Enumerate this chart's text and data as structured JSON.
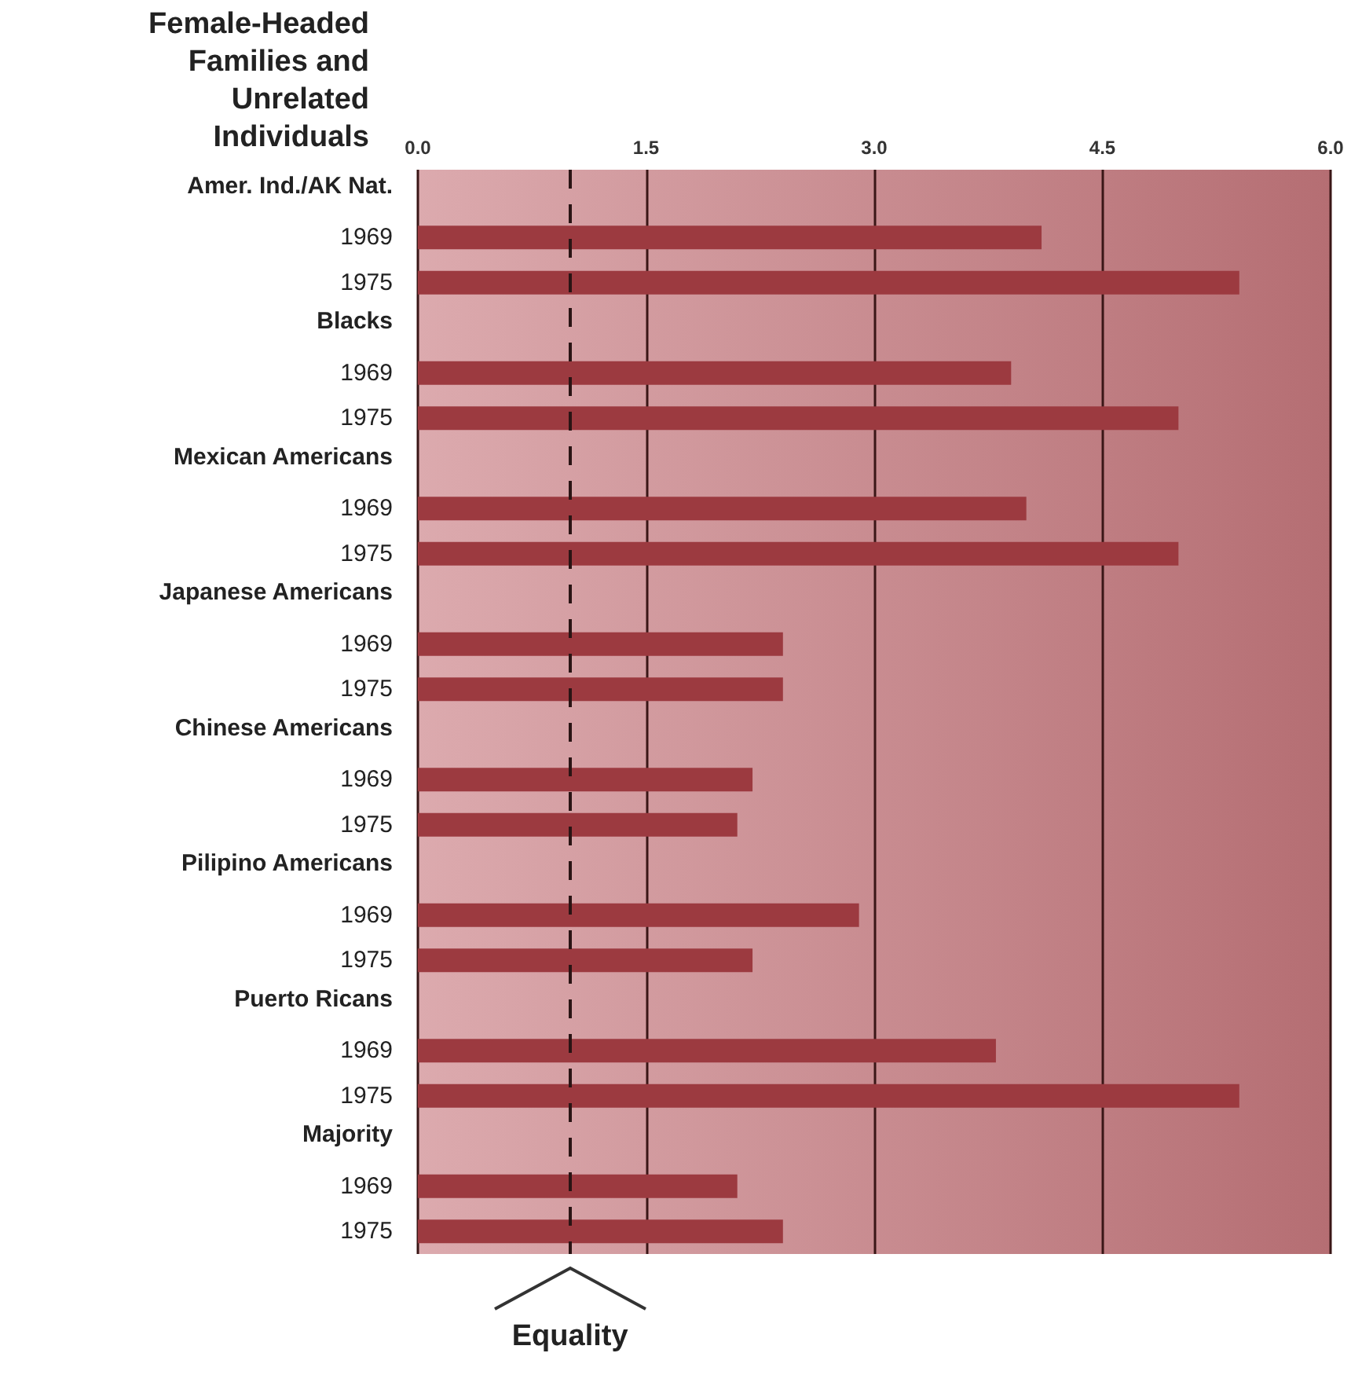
{
  "chart_data": {
    "type": "bar",
    "orientation": "horizontal",
    "title": "Female-Headed Families and Unrelated Individuals",
    "categories": [
      "Amer. Ind./AK Nat.",
      "1969",
      "1975",
      "Blacks",
      "1969",
      "1975",
      "Mexican Americans",
      "1969",
      "1975",
      "Japanese Americans",
      "1969",
      "1975",
      "Chinese Americans",
      "1969",
      "1975",
      "Pilipino Americans",
      "1969",
      "1975",
      "Puerto Ricans",
      "1969",
      "1975",
      "Majority",
      "1969",
      "1975"
    ],
    "values": [
      null,
      4.1,
      5.4,
      null,
      3.9,
      5.0,
      null,
      4.0,
      5.0,
      null,
      2.4,
      2.4,
      null,
      2.2,
      2.1,
      null,
      2.9,
      2.2,
      null,
      3.8,
      5.4,
      null,
      2.1,
      2.4
    ],
    "color": "#9c3a40",
    "xlim": [
      0,
      6
    ],
    "xticks": [
      {
        "value": 0,
        "label": "0.0"
      },
      1.5,
      {
        "value": 3,
        "label": "3.0"
      },
      4.5,
      {
        "value": 6,
        "label": "6.0"
      }
    ],
    "grid": "x",
    "ref_lines": [
      {
        "axis": "x",
        "value": 1.0,
        "label": "Equality",
        "line_style": "dashed",
        "color": "#2a1414"
      }
    ]
  }
}
